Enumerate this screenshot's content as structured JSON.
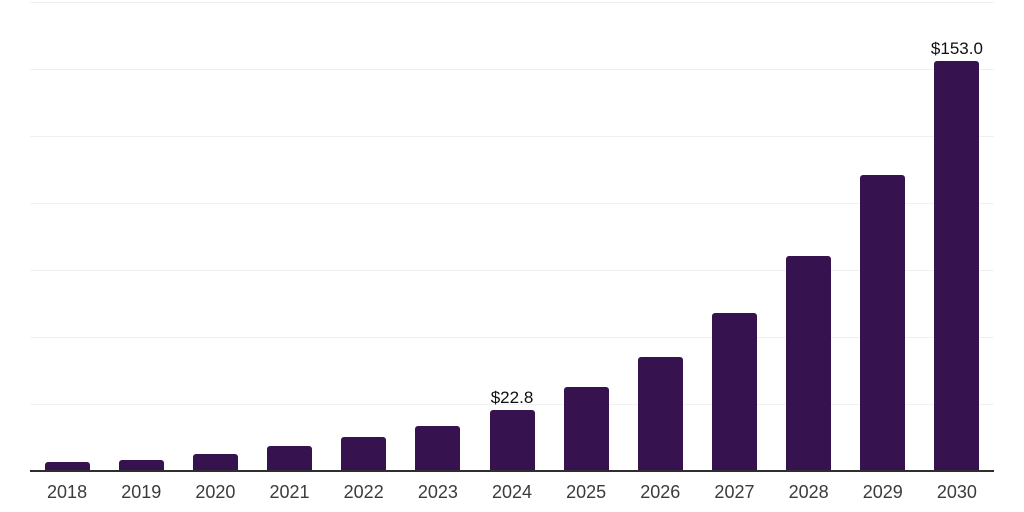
{
  "chart": {
    "background_color": "#ffffff",
    "bar_color": "#36124F",
    "axis_line_color": "#2e2e2e",
    "gridline_color": "#f0f0f2",
    "tick_label_color": "#3b3b3b",
    "value_label_color": "#101010"
  },
  "chart_data": {
    "type": "bar",
    "title": "",
    "xlabel": "",
    "ylabel": "",
    "categories": [
      "2018",
      "2019",
      "2020",
      "2021",
      "2022",
      "2023",
      "2024",
      "2025",
      "2026",
      "2027",
      "2028",
      "2029",
      "2030"
    ],
    "values": [
      3.2,
      4.1,
      6.4,
      9.2,
      12.7,
      16.9,
      22.8,
      31.2,
      42.4,
      58.8,
      80.3,
      110.6,
      153.0
    ],
    "data_labels": [
      "",
      "",
      "",
      "",
      "",
      "",
      "$22.8",
      "",
      "",
      "",
      "",
      "",
      "$153.0"
    ],
    "ylim": [
      0,
      175
    ],
    "gridline_step": 25,
    "grid": true,
    "legend_position": "none",
    "y_tick_labels_visible": false
  }
}
